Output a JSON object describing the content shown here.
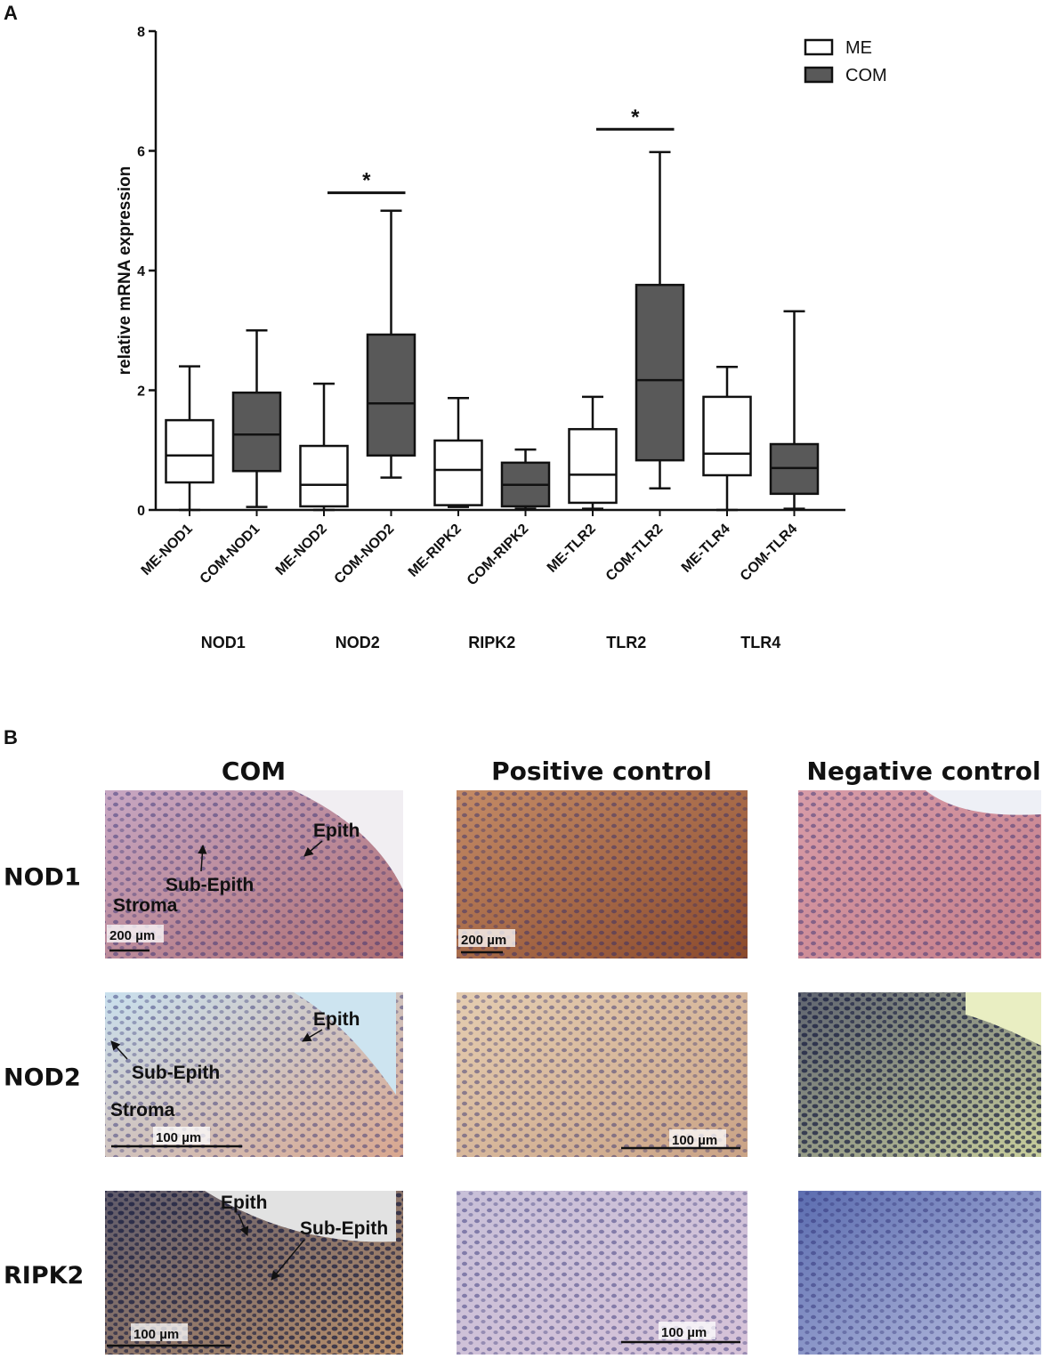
{
  "chart_data": {
    "type": "box",
    "panel_label": "A",
    "ylabel": "relative mRNA expression",
    "ylim": [
      0,
      8
    ],
    "yticks": [
      0,
      2,
      4,
      6,
      8
    ],
    "legend": "top-right",
    "groups": [
      "NOD1",
      "NOD2",
      "RIPK2",
      "TLR2",
      "TLR4"
    ],
    "series": [
      {
        "name": "ME",
        "color": "#ffffff",
        "categories": [
          "ME-NOD1",
          "ME-NOD2",
          "ME-RIPK2",
          "ME-TLR2",
          "ME-TLR4"
        ],
        "values": [
          {
            "min": 0,
            "q1": 0.46,
            "median": 0.91,
            "q3": 1.5,
            "max": 2.4
          },
          {
            "min": 0,
            "q1": 0.06,
            "median": 0.42,
            "q3": 1.07,
            "max": 2.11
          },
          {
            "min": 0.05,
            "q1": 0.08,
            "median": 0.67,
            "q3": 1.16,
            "max": 1.87
          },
          {
            "min": 0.02,
            "q1": 0.12,
            "median": 0.59,
            "q3": 1.35,
            "max": 1.89
          },
          {
            "min": 0,
            "q1": 0.58,
            "median": 0.94,
            "q3": 1.89,
            "max": 2.39
          }
        ]
      },
      {
        "name": "COM",
        "color": "#595959",
        "categories": [
          "COM-NOD1",
          "COM-NOD2",
          "COM-RIPK2",
          "COM-TLR2",
          "COM-TLR4"
        ],
        "values": [
          {
            "min": 0.05,
            "q1": 0.65,
            "median": 1.26,
            "q3": 1.96,
            "max": 3.0
          },
          {
            "min": 0.54,
            "q1": 0.91,
            "median": 1.78,
            "q3": 2.93,
            "max": 5.0
          },
          {
            "min": 0.02,
            "q1": 0.06,
            "median": 0.42,
            "q3": 0.79,
            "max": 1.01
          },
          {
            "min": 0.36,
            "q1": 0.83,
            "median": 2.17,
            "q3": 3.76,
            "max": 5.98
          },
          {
            "min": 0.02,
            "q1": 0.27,
            "median": 0.7,
            "q3": 1.1,
            "max": 3.32
          }
        ]
      }
    ],
    "annotations": [
      {
        "text": "*",
        "y": 5.3,
        "group": "NOD2"
      },
      {
        "text": "*",
        "y": 6.36,
        "group": "TLR2"
      }
    ]
  },
  "panel_b": {
    "label": "B",
    "columns": [
      "COM",
      "Positive control",
      "Negative control"
    ],
    "rows": [
      {
        "name": "NOD1",
        "com_labels": [
          "Epith",
          "Sub-Epith",
          "Stroma"
        ],
        "com_scale": "200 µm",
        "positive_scale": "200 µm"
      },
      {
        "name": "NOD2",
        "com_labels": [
          "Epith",
          "Sub-Epith",
          "Stroma"
        ],
        "com_scale": "100 µm",
        "positive_scale": "100 µm"
      },
      {
        "name": "RIPK2",
        "com_labels": [
          "Epith",
          "Sub-Epith"
        ],
        "com_scale": "100 µm",
        "positive_scale": "100 µm"
      }
    ]
  }
}
